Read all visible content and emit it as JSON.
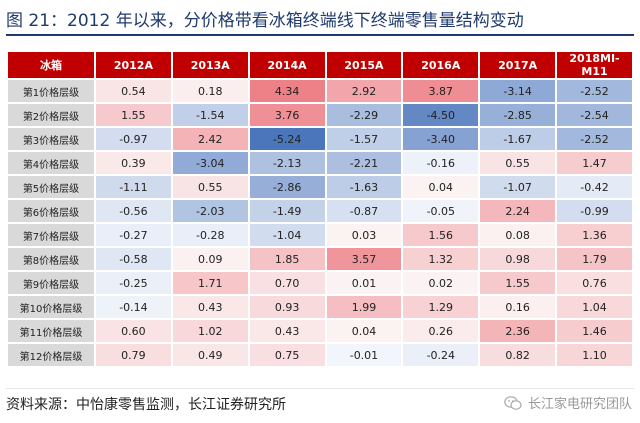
{
  "title": "图 21：2012 年以来，分价格带看冰箱终端线下终端零售量结构变动",
  "source": "资料来源：中怡康零售监测，长江证券研究所",
  "watermark": "长江家电研究团队",
  "colors": {
    "header": "#c00000",
    "positive": "#e8505b",
    "negative": "#2e5fb0",
    "label_bg": "#d9d9d9",
    "title": "#1f3a6e"
  },
  "chart_data": {
    "type": "heatmap",
    "corner_label": "冰箱",
    "columns": [
      "2012A",
      "2013A",
      "2014A",
      "2015A",
      "2016A",
      "2017A",
      "2018MI-M11"
    ],
    "rows": [
      {
        "label": "第1价格层级",
        "values": [
          0.54,
          0.18,
          4.34,
          2.92,
          3.87,
          -3.14,
          -2.52
        ]
      },
      {
        "label": "第2价格层级",
        "values": [
          1.55,
          -1.54,
          3.76,
          -2.29,
          -4.5,
          -2.85,
          -2.54
        ]
      },
      {
        "label": "第3价格层级",
        "values": [
          -0.97,
          2.42,
          -5.24,
          -1.57,
          -3.4,
          -1.67,
          -2.52
        ]
      },
      {
        "label": "第4价格层级",
        "values": [
          0.39,
          -3.04,
          -2.13,
          -2.21,
          -0.16,
          0.55,
          1.47
        ]
      },
      {
        "label": "第5价格层级",
        "values": [
          -1.11,
          0.55,
          -2.86,
          -1.63,
          0.04,
          -1.07,
          -0.42
        ]
      },
      {
        "label": "第6价格层级",
        "values": [
          -0.56,
          -2.03,
          -1.49,
          -0.87,
          -0.05,
          2.24,
          -0.99
        ]
      },
      {
        "label": "第7价格层级",
        "values": [
          -0.27,
          -0.28,
          -1.04,
          0.03,
          1.56,
          0.08,
          1.36
        ]
      },
      {
        "label": "第8价格层级",
        "values": [
          -0.58,
          0.09,
          1.85,
          3.57,
          1.32,
          0.98,
          1.79
        ]
      },
      {
        "label": "第9价格层级",
        "values": [
          -0.25,
          1.71,
          0.7,
          0.01,
          0.02,
          1.55,
          0.76
        ]
      },
      {
        "label": "第10价格层级",
        "values": [
          -0.14,
          0.43,
          0.93,
          1.99,
          1.29,
          0.16,
          1.04
        ]
      },
      {
        "label": "第11价格层级",
        "values": [
          0.6,
          1.02,
          0.43,
          0.04,
          0.26,
          2.36,
          1.46
        ]
      },
      {
        "label": "第12价格层级",
        "values": [
          0.79,
          0.49,
          0.75,
          -0.01,
          -0.24,
          0.82,
          1.1
        ]
      }
    ]
  }
}
